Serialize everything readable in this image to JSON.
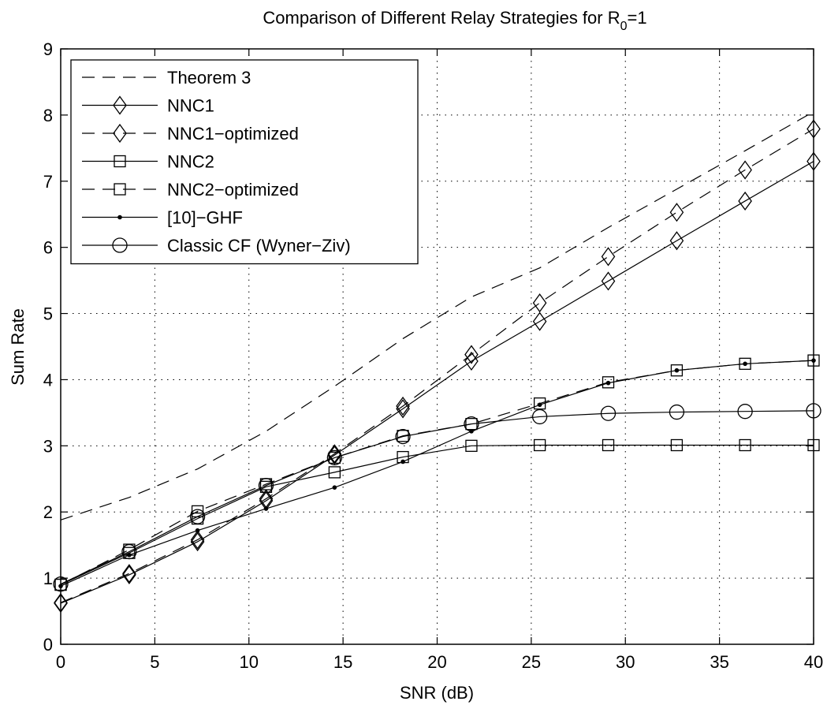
{
  "chart_data": {
    "type": "line",
    "title": "Comparison of Different Relay Strategies for R",
    "title_subscript": "0",
    "title_suffix": "=1",
    "xlabel": "SNR (dB)",
    "ylabel": "Sum Rate",
    "xlim": [
      0,
      40
    ],
    "ylim": [
      0,
      9
    ],
    "xticks": [
      0,
      5,
      10,
      15,
      20,
      25,
      30,
      35,
      40
    ],
    "yticks": [
      0,
      1,
      2,
      3,
      4,
      5,
      6,
      7,
      8,
      9
    ],
    "grid": true,
    "legend_position": "top-left",
    "series": [
      {
        "name": "Theorem 3",
        "line": "dashed",
        "marker": "none",
        "x": [
          0,
          3.64,
          7.27,
          10.91,
          14.55,
          18.18,
          21.82,
          25.45,
          29.09,
          32.73,
          36.36,
          40
        ],
        "values": [
          1.88,
          2.22,
          2.65,
          3.22,
          3.9,
          4.62,
          5.25,
          5.69,
          6.3,
          6.88,
          7.46,
          8.05
        ]
      },
      {
        "name": "NNC1",
        "line": "solid",
        "marker": "diamond",
        "x": [
          0,
          3.64,
          7.27,
          10.91,
          14.55,
          18.18,
          21.82,
          25.45,
          29.09,
          32.73,
          36.36,
          40
        ],
        "values": [
          0.62,
          1.05,
          1.55,
          2.17,
          2.86,
          3.56,
          4.28,
          4.88,
          5.49,
          6.1,
          6.7,
          7.3
        ]
      },
      {
        "name": "NNC1−optimized",
        "line": "dashed",
        "marker": "diamond",
        "x": [
          0,
          3.64,
          7.27,
          10.91,
          14.55,
          18.18,
          21.82,
          25.45,
          29.09,
          32.73,
          36.36,
          40
        ],
        "values": [
          0.63,
          1.07,
          1.58,
          2.2,
          2.88,
          3.6,
          4.38,
          5.16,
          5.86,
          6.53,
          7.17,
          7.79
        ]
      },
      {
        "name": "NNC2",
        "line": "solid",
        "marker": "square",
        "x": [
          0,
          3.64,
          7.27,
          10.91,
          14.55,
          18.18,
          21.82,
          25.45,
          29.09,
          32.73,
          36.36,
          40
        ],
        "values": [
          0.9,
          1.38,
          1.9,
          2.38,
          2.6,
          2.83,
          3.0,
          3.01,
          3.01,
          3.01,
          3.01,
          3.01
        ]
      },
      {
        "name": "NNC2−optimized",
        "line": "dashed",
        "marker": "square",
        "x": [
          0,
          3.64,
          7.27,
          10.91,
          14.55,
          18.18,
          21.82,
          25.45,
          29.09,
          32.73,
          36.36,
          40
        ],
        "values": [
          0.9,
          1.43,
          2.01,
          2.42,
          2.82,
          3.15,
          3.33,
          3.64,
          3.96,
          4.14,
          4.24,
          4.29
        ]
      },
      {
        "name": "[10]−GHF",
        "line": "solid",
        "marker": "dot",
        "x": [
          0,
          3.64,
          7.27,
          10.91,
          14.55,
          18.18,
          21.82,
          25.45,
          29.09,
          32.73,
          36.36,
          40
        ],
        "values": [
          0.88,
          1.35,
          1.72,
          2.05,
          2.37,
          2.76,
          3.22,
          3.62,
          3.95,
          4.14,
          4.24,
          4.29
        ]
      },
      {
        "name": "Classic CF (Wyner−Ziv)",
        "line": "solid",
        "marker": "circle",
        "x": [
          0,
          3.64,
          7.27,
          10.91,
          14.55,
          18.18,
          21.82,
          25.45,
          29.09,
          32.73,
          36.36,
          40
        ],
        "values": [
          0.91,
          1.4,
          1.93,
          2.4,
          2.82,
          3.14,
          3.33,
          3.44,
          3.49,
          3.51,
          3.52,
          3.53
        ]
      }
    ]
  }
}
